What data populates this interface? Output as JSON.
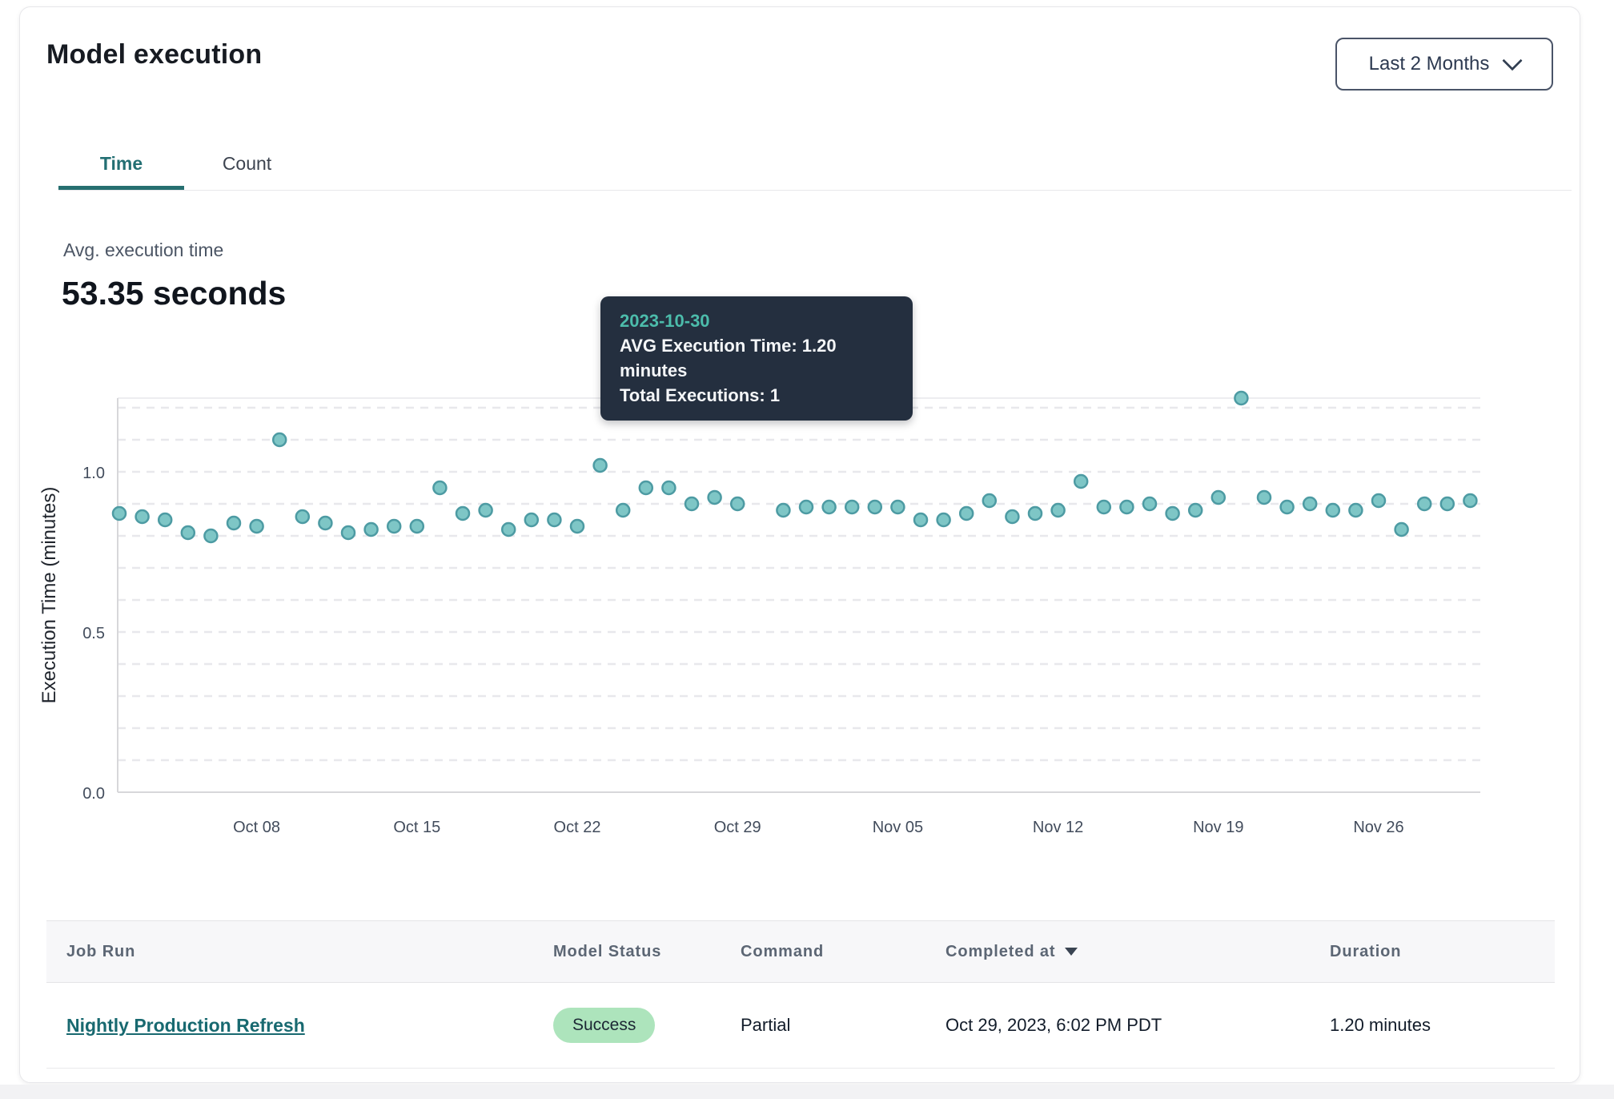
{
  "page": {
    "title": "Model execution"
  },
  "header": {
    "range_selector": {
      "label": "Last 2 Months",
      "icon": "chevron-down-icon"
    }
  },
  "tabs": [
    {
      "label": "Time",
      "active": true
    },
    {
      "label": "Count",
      "active": false
    }
  ],
  "summary": {
    "label": "Avg. execution time",
    "value": "53.35 seconds"
  },
  "tooltip": {
    "date": "2023-10-30",
    "avg_line": "AVG Execution Time: 1.20 minutes",
    "total_line": "Total Executions: 1"
  },
  "chart_data": {
    "type": "scatter",
    "title": "",
    "xlabel": "",
    "ylabel": "Execution Time (minutes)",
    "ylim": [
      0,
      1.25
    ],
    "grid": "dashed-horizontal",
    "grid_step": 0.1,
    "ytick_values": [
      0.0,
      0.5,
      1.0
    ],
    "ytick_labels": [
      "0.0",
      "0.5",
      "1.0"
    ],
    "xtick_labels": [
      "Oct 08",
      "Oct 15",
      "Oct 22",
      "Oct 29",
      "Nov 05",
      "Nov 12",
      "Nov 19",
      "Nov 26"
    ],
    "xtick_day_indices": [
      6,
      13,
      20,
      27,
      34,
      41,
      48,
      55
    ],
    "dates": [
      "2023-10-02",
      "2023-10-03",
      "2023-10-04",
      "2023-10-05",
      "2023-10-06",
      "2023-10-07",
      "2023-10-08",
      "2023-10-09",
      "2023-10-10",
      "2023-10-11",
      "2023-10-12",
      "2023-10-13",
      "2023-10-14",
      "2023-10-15",
      "2023-10-16",
      "2023-10-17",
      "2023-10-18",
      "2023-10-19",
      "2023-10-20",
      "2023-10-21",
      "2023-10-22",
      "2023-10-23",
      "2023-10-24",
      "2023-10-25",
      "2023-10-26",
      "2023-10-27",
      "2023-10-28",
      "2023-10-29",
      "2023-10-30",
      "2023-10-31",
      "2023-11-01",
      "2023-11-02",
      "2023-11-03",
      "2023-11-04",
      "2023-11-05",
      "2023-11-06",
      "2023-11-07",
      "2023-11-08",
      "2023-11-09",
      "2023-11-10",
      "2023-11-11",
      "2023-11-12",
      "2023-11-13",
      "2023-11-14",
      "2023-11-15",
      "2023-11-16",
      "2023-11-17",
      "2023-11-18",
      "2023-11-19",
      "2023-11-20",
      "2023-11-21",
      "2023-11-22",
      "2023-11-23",
      "2023-11-24",
      "2023-11-25",
      "2023-11-26",
      "2023-11-27",
      "2023-11-28",
      "2023-11-29",
      "2023-11-30"
    ],
    "values": [
      0.87,
      0.86,
      0.85,
      0.81,
      0.8,
      0.84,
      0.83,
      1.1,
      0.86,
      0.84,
      0.81,
      0.82,
      0.83,
      0.83,
      0.95,
      0.87,
      0.88,
      0.82,
      0.85,
      0.85,
      0.83,
      1.02,
      0.88,
      0.95,
      0.95,
      0.9,
      0.92,
      0.9,
      1.2,
      0.88,
      0.89,
      0.89,
      0.89,
      0.89,
      0.89,
      0.85,
      0.85,
      0.87,
      0.91,
      0.86,
      0.87,
      0.88,
      0.97,
      0.89,
      0.89,
      0.9,
      0.87,
      0.88,
      0.92,
      1.23,
      0.92,
      0.89,
      0.9,
      0.88,
      0.88,
      0.91,
      0.82,
      0.9,
      0.9,
      0.91
    ],
    "highlight": {
      "date": "2023-10-30",
      "index": 28,
      "value": 1.2
    },
    "colors": {
      "dot_fill": "#7ec6c6",
      "dot_stroke": "#4d9ba3",
      "dot_highlight": "#4d8c93",
      "grid": "#e8e8ec",
      "axis": "#d7d7da",
      "tick_text": "#424c5c"
    }
  },
  "table": {
    "columns": [
      {
        "label": "Job Run",
        "sorted": false
      },
      {
        "label": "Model Status",
        "sorted": false
      },
      {
        "label": "Command",
        "sorted": false
      },
      {
        "label": "Completed at",
        "sorted": true
      },
      {
        "label": "Duration",
        "sorted": false
      }
    ],
    "rows": [
      {
        "job_run": "Nightly Production Refresh",
        "model_status": "Success",
        "status_color": "#ade4bc",
        "command": "Partial",
        "completed_at": "Oct 29, 2023, 6:02 PM PDT",
        "duration": "1.20 minutes"
      }
    ]
  }
}
